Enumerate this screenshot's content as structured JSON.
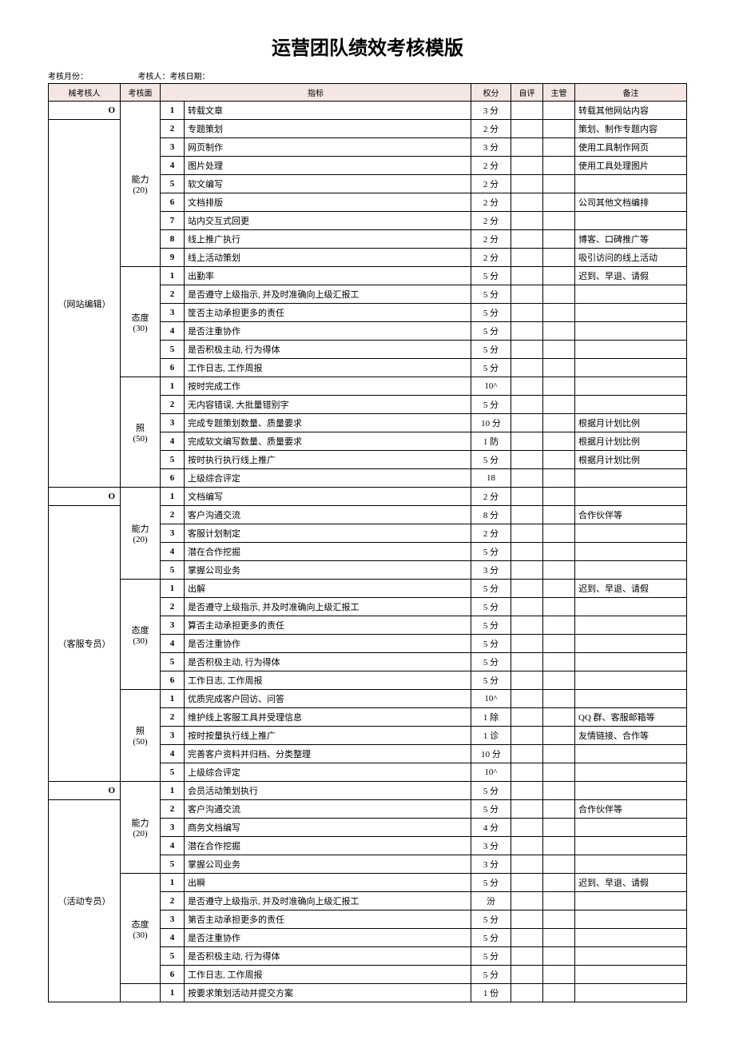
{
  "title": "运营团队绩效考核模版",
  "meta": {
    "month_label": "考核月份：",
    "person_label": "考核人：考核日期："
  },
  "headers": {
    "person": "械考核人",
    "aspect": "考核面",
    "indicator": "指标",
    "weight": "权分",
    "self": "自评",
    "super": "主管",
    "note": "备注"
  },
  "roles": [
    {
      "o": "O",
      "name": "（网站编辑）",
      "sections": [
        {
          "name": "能力\n(20)",
          "rows": [
            {
              "n": "1",
              "indicator": "转载文章",
              "weight": "3 分",
              "note": "转载其他网站内容"
            },
            {
              "n": "2",
              "indicator": "专题策划",
              "weight": "2 分",
              "note": "策划、制作专题内容"
            },
            {
              "n": "3",
              "indicator": "网页制作",
              "weight": "3 分",
              "note": "使用工具制作网页"
            },
            {
              "n": "4",
              "indicator": "图片处理",
              "weight": "2 分",
              "note": "使用工具处理图片"
            },
            {
              "n": "5",
              "indicator": "软文编写",
              "weight": "2 分",
              "note": ""
            },
            {
              "n": "6",
              "indicator": "文档排版",
              "weight": "2 分",
              "note": "公司其他文档编排"
            },
            {
              "n": "7",
              "indicator": "站内交互式回更",
              "weight": "2 分",
              "note": ""
            },
            {
              "n": "8",
              "indicator": "线上推广执行",
              "weight": "2 分",
              "note": "博客、口碑推广等"
            },
            {
              "n": "9",
              "indicator": "线上活动策划",
              "weight": "2 分",
              "note": "吸引访问的线上活动"
            }
          ]
        },
        {
          "name": "态度\n(30)",
          "rows": [
            {
              "n": "1",
              "indicator": "出勤率",
              "weight": "5 分",
              "note": "迟到、早退、请假"
            },
            {
              "n": "2",
              "indicator": "是否遵守上级指示, 并及时准确向上级汇报工",
              "weight": "5 分",
              "note": ""
            },
            {
              "n": "3",
              "indicator": "筐否主动承担更多的责任",
              "weight": "5 分",
              "note": ""
            },
            {
              "n": "4",
              "indicator": "是否注重协作",
              "weight": "5 分",
              "note": ""
            },
            {
              "n": "5",
              "indicator": "是否积极主动, 行为得体",
              "weight": "5 分",
              "note": ""
            },
            {
              "n": "6",
              "indicator": "工作日志, 工作周报",
              "weight": "5 分",
              "note": ""
            }
          ]
        },
        {
          "name": "照\n(50)",
          "rows": [
            {
              "n": "1",
              "indicator": "按时完成工作",
              "weight": "10^",
              "note": ""
            },
            {
              "n": "2",
              "indicator": "无内容错误, 大批量错别字",
              "weight": "5 分",
              "note": ""
            },
            {
              "n": "3",
              "indicator": "完成专题策划数量、质量要求",
              "weight": "10 分",
              "note": "根据月计划比例"
            },
            {
              "n": "4",
              "indicator": "完成软文编写数量、质量要求",
              "weight": "1 防",
              "note": "根据月计划比例"
            },
            {
              "n": "5",
              "indicator": "按时执行执行线上推广",
              "weight": "5 分",
              "note": "根据月计划比例"
            },
            {
              "n": "6",
              "indicator": "上级综合评定",
              "weight": "18",
              "note": ""
            }
          ]
        }
      ]
    },
    {
      "o": "O",
      "name": "（客服专员）",
      "sections": [
        {
          "name": "能力\n(20)",
          "rows": [
            {
              "n": "1",
              "indicator": "文档编写",
              "weight": "2 分",
              "note": ""
            },
            {
              "n": "2",
              "indicator": "客户沟通交流",
              "weight": "8 分",
              "note": "合作伙伴等"
            },
            {
              "n": "3",
              "indicator": "客服计划制定",
              "weight": "2 分",
              "note": ""
            },
            {
              "n": "4",
              "indicator": "潜在合作挖掘",
              "weight": "5 分",
              "note": ""
            },
            {
              "n": "5",
              "indicator": "掌握公司业务",
              "weight": "3 分",
              "note": ""
            }
          ]
        },
        {
          "name": "态度\n(30)",
          "rows": [
            {
              "n": "1",
              "indicator": "出解",
              "weight": "5 分",
              "note": "迟到、早退、请假"
            },
            {
              "n": "2",
              "indicator": "是否遵守上级指示, 并及时准确向上级汇报工",
              "weight": "5 分",
              "note": ""
            },
            {
              "n": "3",
              "indicator": "算否主动承担更多的责任",
              "weight": "5 分",
              "note": ""
            },
            {
              "n": "4",
              "indicator": "是否注重协作",
              "weight": "5 分",
              "note": ""
            },
            {
              "n": "5",
              "indicator": "是否积极主动, 行为得体",
              "weight": "5 分",
              "note": ""
            },
            {
              "n": "6",
              "indicator": "工作日志, 工作周报",
              "weight": "5 分",
              "note": ""
            }
          ]
        },
        {
          "name": "照\n(50)",
          "rows": [
            {
              "n": "1",
              "indicator": "优质完成客户回访、问答",
              "weight": "10^",
              "note": ""
            },
            {
              "n": "2",
              "indicator": "维护线上客服工具并受理信息",
              "weight": "1 除",
              "note": "QQ 群、客服邮箱等"
            },
            {
              "n": "3",
              "indicator": "按时按量执行线上推广",
              "weight": "1 诊",
              "note": "友情链接、合作等"
            },
            {
              "n": "4",
              "indicator": "完善客户资料并归档、分类整理",
              "weight": "10 分",
              "note": ""
            },
            {
              "n": "5",
              "indicator": "上级综合评定",
              "weight": "10^",
              "note": ""
            }
          ]
        }
      ]
    },
    {
      "o": "O",
      "name": "（活动专员）",
      "sections": [
        {
          "name": "能力\n(20)",
          "rows": [
            {
              "n": "1",
              "indicator": "会员活动策划执行",
              "weight": "5 分",
              "note": ""
            },
            {
              "n": "2",
              "indicator": "客户沟通交流",
              "weight": "5 分",
              "note": "合作伙伴等"
            },
            {
              "n": "3",
              "indicator": "商务文档编写",
              "weight": "4 分",
              "note": ""
            },
            {
              "n": "4",
              "indicator": "潜在合作挖掘",
              "weight": "3 分",
              "note": ""
            },
            {
              "n": "5",
              "indicator": "掌握公司业务",
              "weight": "3 分",
              "note": ""
            }
          ]
        },
        {
          "name": "态度\n(30)",
          "rows": [
            {
              "n": "1",
              "indicator": "出瞬",
              "weight": "5 分",
              "note": "迟到、早退、请假"
            },
            {
              "n": "2",
              "indicator": "是否遵守上级指示, 并及时准确向上级汇报工",
              "weight": "汾",
              "note": ""
            },
            {
              "n": "3",
              "indicator": "第否主动承担更多的责任",
              "weight": "5 分",
              "note": ""
            },
            {
              "n": "4",
              "indicator": "是否注重协作",
              "weight": "5 分",
              "note": ""
            },
            {
              "n": "5",
              "indicator": "是否积极主动, 行为得体",
              "weight": "5 分",
              "note": ""
            },
            {
              "n": "6",
              "indicator": "工作日志, 工作周报",
              "weight": "5 分",
              "note": ""
            }
          ]
        },
        {
          "name": "",
          "rows": [
            {
              "n": "1",
              "indicator": "按要求策划活动并提交方案",
              "weight": "1 份",
              "note": ""
            }
          ]
        }
      ]
    }
  ]
}
